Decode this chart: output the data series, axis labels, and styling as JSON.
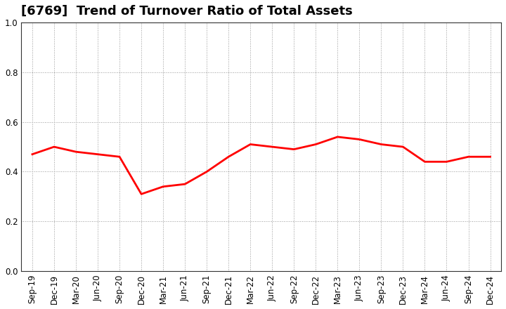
{
  "title": "[6769]  Trend of Turnover Ratio of Total Assets",
  "x_labels": [
    "Sep-19",
    "Dec-19",
    "Mar-20",
    "Jun-20",
    "Sep-20",
    "Dec-20",
    "Mar-21",
    "Jun-21",
    "Sep-21",
    "Dec-21",
    "Mar-22",
    "Jun-22",
    "Sep-22",
    "Dec-22",
    "Mar-23",
    "Jun-23",
    "Sep-23",
    "Dec-23",
    "Mar-24",
    "Jun-24",
    "Sep-24",
    "Dec-24"
  ],
  "y_values": [
    0.47,
    0.5,
    0.48,
    0.47,
    0.46,
    0.31,
    0.34,
    0.35,
    0.4,
    0.46,
    0.51,
    0.5,
    0.49,
    0.51,
    0.54,
    0.53,
    0.51,
    0.5,
    0.44,
    0.44,
    0.46,
    0.46
  ],
  "line_color": "#FF0000",
  "line_width": 2.0,
  "ylim": [
    0.0,
    1.0
  ],
  "yticks": [
    0.0,
    0.2,
    0.4,
    0.6,
    0.8,
    1.0
  ],
  "background_color": "#FFFFFF",
  "grid_color": "#999999",
  "title_fontsize": 13,
  "tick_fontsize": 8.5
}
